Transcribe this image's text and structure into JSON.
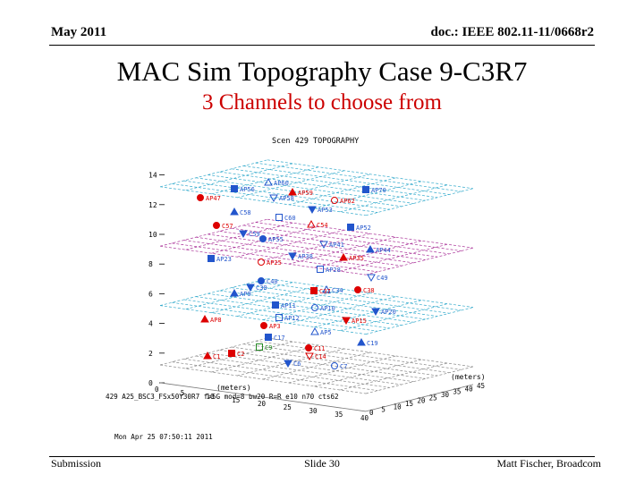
{
  "header": {
    "date": "May 2011",
    "doc_id": "doc.: IEEE 802.11-11/0668r2"
  },
  "title": "MAC Sim Topography Case 9-C3R7",
  "subtitle": "3 Channels to choose from",
  "footer": {
    "left": "Submission",
    "center": "Slide 30",
    "right": "Matt Fischer, Broadcom"
  },
  "colors": {
    "cyan": "#33aacc",
    "magenta": "#aa3399",
    "red": "#dd0000",
    "blue": "#2255cc",
    "green": "#228822",
    "text": "#cc0000"
  },
  "figure": {
    "plot_title": "Scen 429 TOPOGRAPHY",
    "z_ticks": [
      "0",
      "2",
      "4",
      "6",
      "8",
      "10",
      "12",
      "14"
    ],
    "x_axis_label": "(meters)",
    "x_ticks": [
      "0",
      "5",
      "10",
      "15",
      "20",
      "25",
      "30",
      "35",
      "40"
    ],
    "y_axis_label": "(meters)",
    "y_ticks": [
      "0",
      "5",
      "10",
      "15",
      "20",
      "25",
      "30",
      "35",
      "40",
      "45"
    ],
    "params_line": "429 A25_BSC3_FSx50Y30R7 f=5G mod=8 bw20 R=R e10 n70 cts62",
    "timestamp": "Mon Apr 25 07:50:11 2011",
    "labels": [
      {
        "text": "AP60",
        "color": "blue"
      },
      {
        "text": "AP56",
        "color": "blue"
      },
      {
        "text": "AP47",
        "color": "red"
      },
      {
        "text": "AP58",
        "color": "blue"
      },
      {
        "text": "AP59",
        "color": "red"
      },
      {
        "text": "AP70",
        "color": "blue"
      },
      {
        "text": "AP62",
        "color": "red"
      },
      {
        "text": "AP53",
        "color": "blue"
      },
      {
        "text": "C58",
        "color": "blue"
      },
      {
        "text": "C60",
        "color": "blue"
      },
      {
        "text": "C57",
        "color": "red"
      },
      {
        "text": "C59",
        "color": "blue"
      },
      {
        "text": "C54",
        "color": "red"
      },
      {
        "text": "AP52",
        "color": "blue"
      },
      {
        "text": "AP55",
        "color": "blue"
      },
      {
        "text": "AP41",
        "color": "blue"
      },
      {
        "text": "AP44",
        "color": "blue"
      },
      {
        "text": "AP23",
        "color": "blue"
      },
      {
        "text": "AP25",
        "color": "red"
      },
      {
        "text": "AP38",
        "color": "blue"
      },
      {
        "text": "AP35",
        "color": "red"
      },
      {
        "text": "AP28",
        "color": "blue"
      },
      {
        "text": "C40",
        "color": "blue"
      },
      {
        "text": "C30",
        "color": "blue"
      },
      {
        "text": "C34",
        "color": "blue"
      },
      {
        "text": "C37",
        "color": "red"
      },
      {
        "text": "C38",
        "color": "red"
      },
      {
        "text": "C49",
        "color": "blue"
      },
      {
        "text": "AP9",
        "color": "blue"
      },
      {
        "text": "AP11",
        "color": "blue"
      },
      {
        "text": "AP10",
        "color": "blue"
      },
      {
        "text": "AP20",
        "color": "blue"
      },
      {
        "text": "AP8",
        "color": "red"
      },
      {
        "text": "AP12",
        "color": "blue"
      },
      {
        "text": "AP3",
        "color": "red"
      },
      {
        "text": "AP15",
        "color": "red"
      },
      {
        "text": "AP5",
        "color": "blue"
      },
      {
        "text": "C17",
        "color": "blue"
      },
      {
        "text": "C11",
        "color": "red"
      },
      {
        "text": "C14",
        "color": "red"
      },
      {
        "text": "C1",
        "color": "red"
      },
      {
        "text": "C2",
        "color": "red"
      },
      {
        "text": "C7",
        "color": "blue"
      },
      {
        "text": "C6",
        "color": "blue"
      },
      {
        "text": "C19",
        "color": "blue"
      },
      {
        "text": "C9",
        "color": "green"
      }
    ]
  }
}
